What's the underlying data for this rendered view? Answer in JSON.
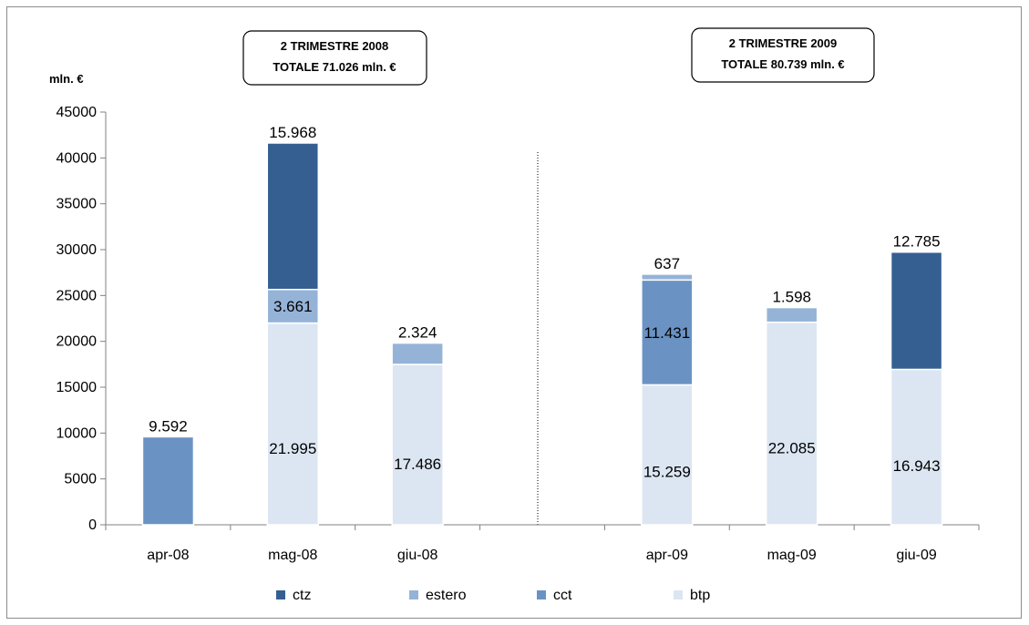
{
  "chart_data": {
    "type": "bar",
    "stacked": true,
    "unit_label": "mln. €",
    "categories": [
      "apr-08",
      "mag-08",
      "giu-08",
      "",
      "apr-09",
      "mag-09",
      "giu-09"
    ],
    "series": [
      {
        "name": "btp",
        "color": "#dce6f2",
        "values": [
          0,
          21995,
          17486,
          0,
          15259,
          22085,
          16943
        ],
        "labels": [
          "",
          "21.995",
          "17.486",
          "",
          "15.259",
          "22.085",
          "16.943"
        ]
      },
      {
        "name": "cct",
        "color": "#6a93c4",
        "values": [
          9592,
          0,
          0,
          0,
          11431,
          0,
          0
        ],
        "labels": [
          "9.592",
          "",
          "",
          "",
          "11.431",
          "",
          ""
        ]
      },
      {
        "name": "estero",
        "color": "#95b3d7",
        "values": [
          0,
          3661,
          2324,
          0,
          637,
          1598,
          0
        ],
        "labels": [
          "",
          "3.661",
          "2.324",
          "",
          "637",
          "1.598",
          ""
        ]
      },
      {
        "name": "ctz",
        "color": "#355f91",
        "values": [
          0,
          15968,
          0,
          0,
          0,
          0,
          12785
        ],
        "labels": [
          "",
          "15.968",
          "",
          "",
          "",
          "",
          "12.785"
        ]
      }
    ],
    "legend_order": [
      "ctz",
      "estero",
      "cct",
      "btp"
    ],
    "legend_placement": "bottom",
    "ylim": [
      0,
      45000
    ],
    "yticks": [
      "0",
      "5000",
      "10000",
      "15000",
      "20000",
      "25000",
      "30000",
      "35000",
      "40000",
      "45000"
    ],
    "annotations": [
      {
        "line1": "2  TRIMESTRE 2008",
        "line2": "TOTALE    71.026 mln. €"
      },
      {
        "line1": "2  TRIMESTRE 2009",
        "line2": "TOTALE    80.739 mln. €"
      }
    ],
    "grid": false
  }
}
